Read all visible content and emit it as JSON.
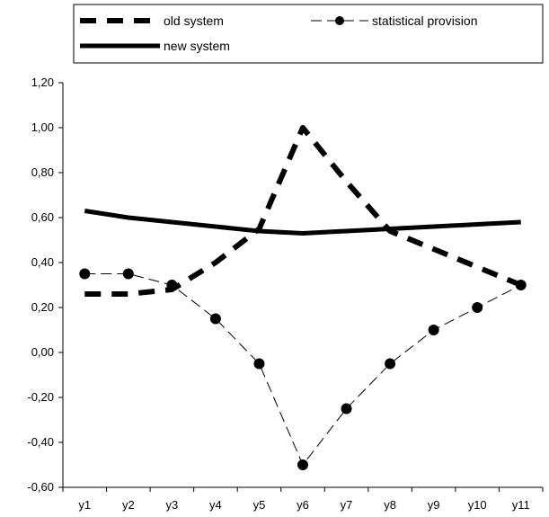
{
  "chart_data": {
    "type": "line",
    "categories": [
      "y1",
      "y2",
      "y3",
      "y4",
      "y5",
      "y6",
      "y7",
      "y8",
      "y9",
      "y10",
      "y11"
    ],
    "ylim": [
      -0.6,
      1.2
    ],
    "yticks": [
      "-0,60",
      "-0,40",
      "-0,20",
      "0,00",
      "0,20",
      "0,40",
      "0,60",
      "0,80",
      "1,00",
      "1,20"
    ],
    "ytick_values": [
      -0.6,
      -0.4,
      -0.2,
      0.0,
      0.2,
      0.4,
      0.6,
      0.8,
      1.0,
      1.2
    ],
    "grid": false,
    "legend_position": "top",
    "series": [
      {
        "name": "old system",
        "style": "thick-dashed",
        "color": "#000000",
        "values": [
          0.26,
          0.26,
          0.28,
          0.4,
          0.55,
          1.0,
          0.76,
          0.54,
          0.46,
          0.38,
          0.3
        ]
      },
      {
        "name": "statistical provision",
        "style": "thin-dashed-markers",
        "color": "#000000",
        "values": [
          0.35,
          0.35,
          0.3,
          0.15,
          -0.05,
          -0.5,
          -0.25,
          -0.05,
          0.1,
          0.2,
          0.3
        ]
      },
      {
        "name": "new system",
        "style": "thick-solid",
        "color": "#000000",
        "values": [
          0.63,
          0.6,
          0.58,
          0.56,
          0.54,
          0.53,
          0.54,
          0.55,
          0.56,
          0.57,
          0.58
        ]
      }
    ]
  }
}
